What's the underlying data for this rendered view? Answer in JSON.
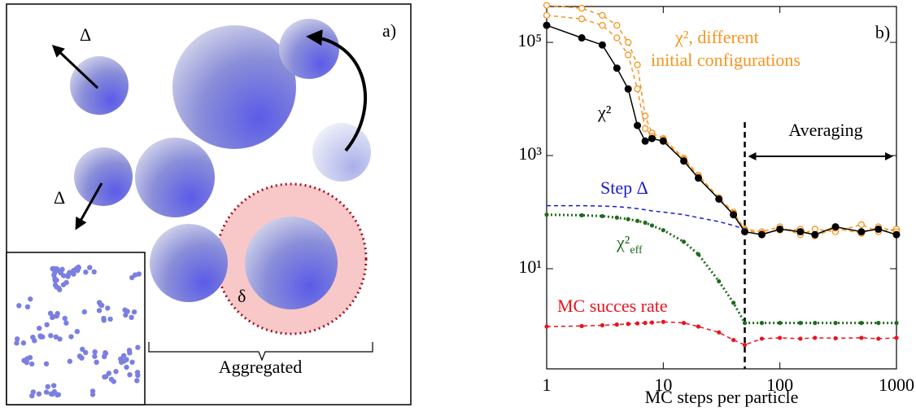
{
  "panel_a": {
    "label": "a)",
    "delta_1": "Δ",
    "delta_2": "Δ",
    "small_delta": "δ",
    "brace_label": "Aggregated"
  },
  "chart_data": {
    "type": "line",
    "log_x": true,
    "log_y": true,
    "xlabel": "MC steps per particle",
    "x": [
      1,
      2,
      3,
      4,
      5,
      6,
      7,
      8,
      10,
      15,
      20,
      30,
      40,
      50,
      70,
      100,
      150,
      200,
      300,
      500,
      700,
      1000
    ],
    "xlim": [
      1,
      1000
    ],
    "ylim": [
      0.17,
      430000
    ],
    "xticks": [
      1,
      10,
      100,
      1000
    ],
    "yticks": [
      {
        "value": 10,
        "label": "10¹"
      },
      {
        "value": 1000,
        "label": "10³"
      },
      {
        "value": 100000,
        "label": "10⁵"
      }
    ],
    "vline": 50,
    "series": [
      {
        "color": "#f7931e",
        "line": "dashed",
        "marker": "open",
        "values": [
          450000,
          400000,
          300000,
          200000,
          100000,
          40000,
          5000,
          2500,
          2000,
          900,
          450,
          180,
          100,
          50,
          45,
          55,
          40,
          50,
          45,
          60,
          45,
          50
        ]
      },
      {
        "color": "#f7931e",
        "line": "dashed",
        "marker": "open",
        "values": [
          300000,
          260000,
          200000,
          120000,
          60000,
          15000,
          3000,
          2200,
          1900,
          850,
          420,
          170,
          95,
          48,
          42,
          48,
          50,
          38,
          52,
          42,
          55,
          45
        ]
      },
      {
        "color": "#000000",
        "line": "solid",
        "marker": "filled",
        "values": [
          200000,
          120000,
          90000,
          35000,
          15000,
          3400,
          1800,
          2000,
          1800,
          800,
          400,
          170,
          90,
          45,
          40,
          50,
          45,
          40,
          55,
          45,
          50,
          40
        ]
      },
      {
        "color": "#1a1acc",
        "line": "dashed",
        "marker": "none",
        "values": [
          130,
          130,
          128,
          125,
          120,
          115,
          110,
          105,
          100,
          90,
          80,
          68,
          58,
          50,
          null,
          null,
          null,
          null,
          null,
          null,
          null,
          null
        ]
      },
      {
        "color": "#1e6b1e",
        "line": "dotted",
        "marker": "small",
        "values": [
          90,
          88,
          85,
          80,
          75,
          70,
          65,
          58,
          48,
          30,
          18,
          6,
          2.5,
          1.1,
          1.1,
          1.1,
          1.1,
          1.1,
          1.1,
          1.1,
          1.1,
          1.1
        ]
      },
      {
        "color": "#e8141e",
        "line": "dashed",
        "marker": "small",
        "values": [
          0.95,
          0.97,
          1.0,
          1.03,
          1.06,
          1.08,
          1.1,
          1.12,
          1.15,
          1.1,
          0.95,
          0.75,
          0.55,
          0.45,
          0.58,
          0.6,
          0.58,
          0.6,
          0.59,
          0.6,
          0.58,
          0.6
        ]
      }
    ],
    "annotations": [
      {
        "text": "b)",
        "color": "#000000"
      },
      {
        "text": "χ², different",
        "color": "#f7931e"
      },
      {
        "text": "initial configurations",
        "color": "#f7931e"
      },
      {
        "text": "χ²",
        "color": "#000000"
      },
      {
        "text": "Averaging",
        "color": "#000000"
      },
      {
        "text": "Step Δ",
        "color": "#1a1acc"
      },
      {
        "text": "χ²",
        "subscript": "eff",
        "color": "#1e6b1e"
      },
      {
        "text": "MC succes rate",
        "color": "#e8141e"
      }
    ]
  }
}
